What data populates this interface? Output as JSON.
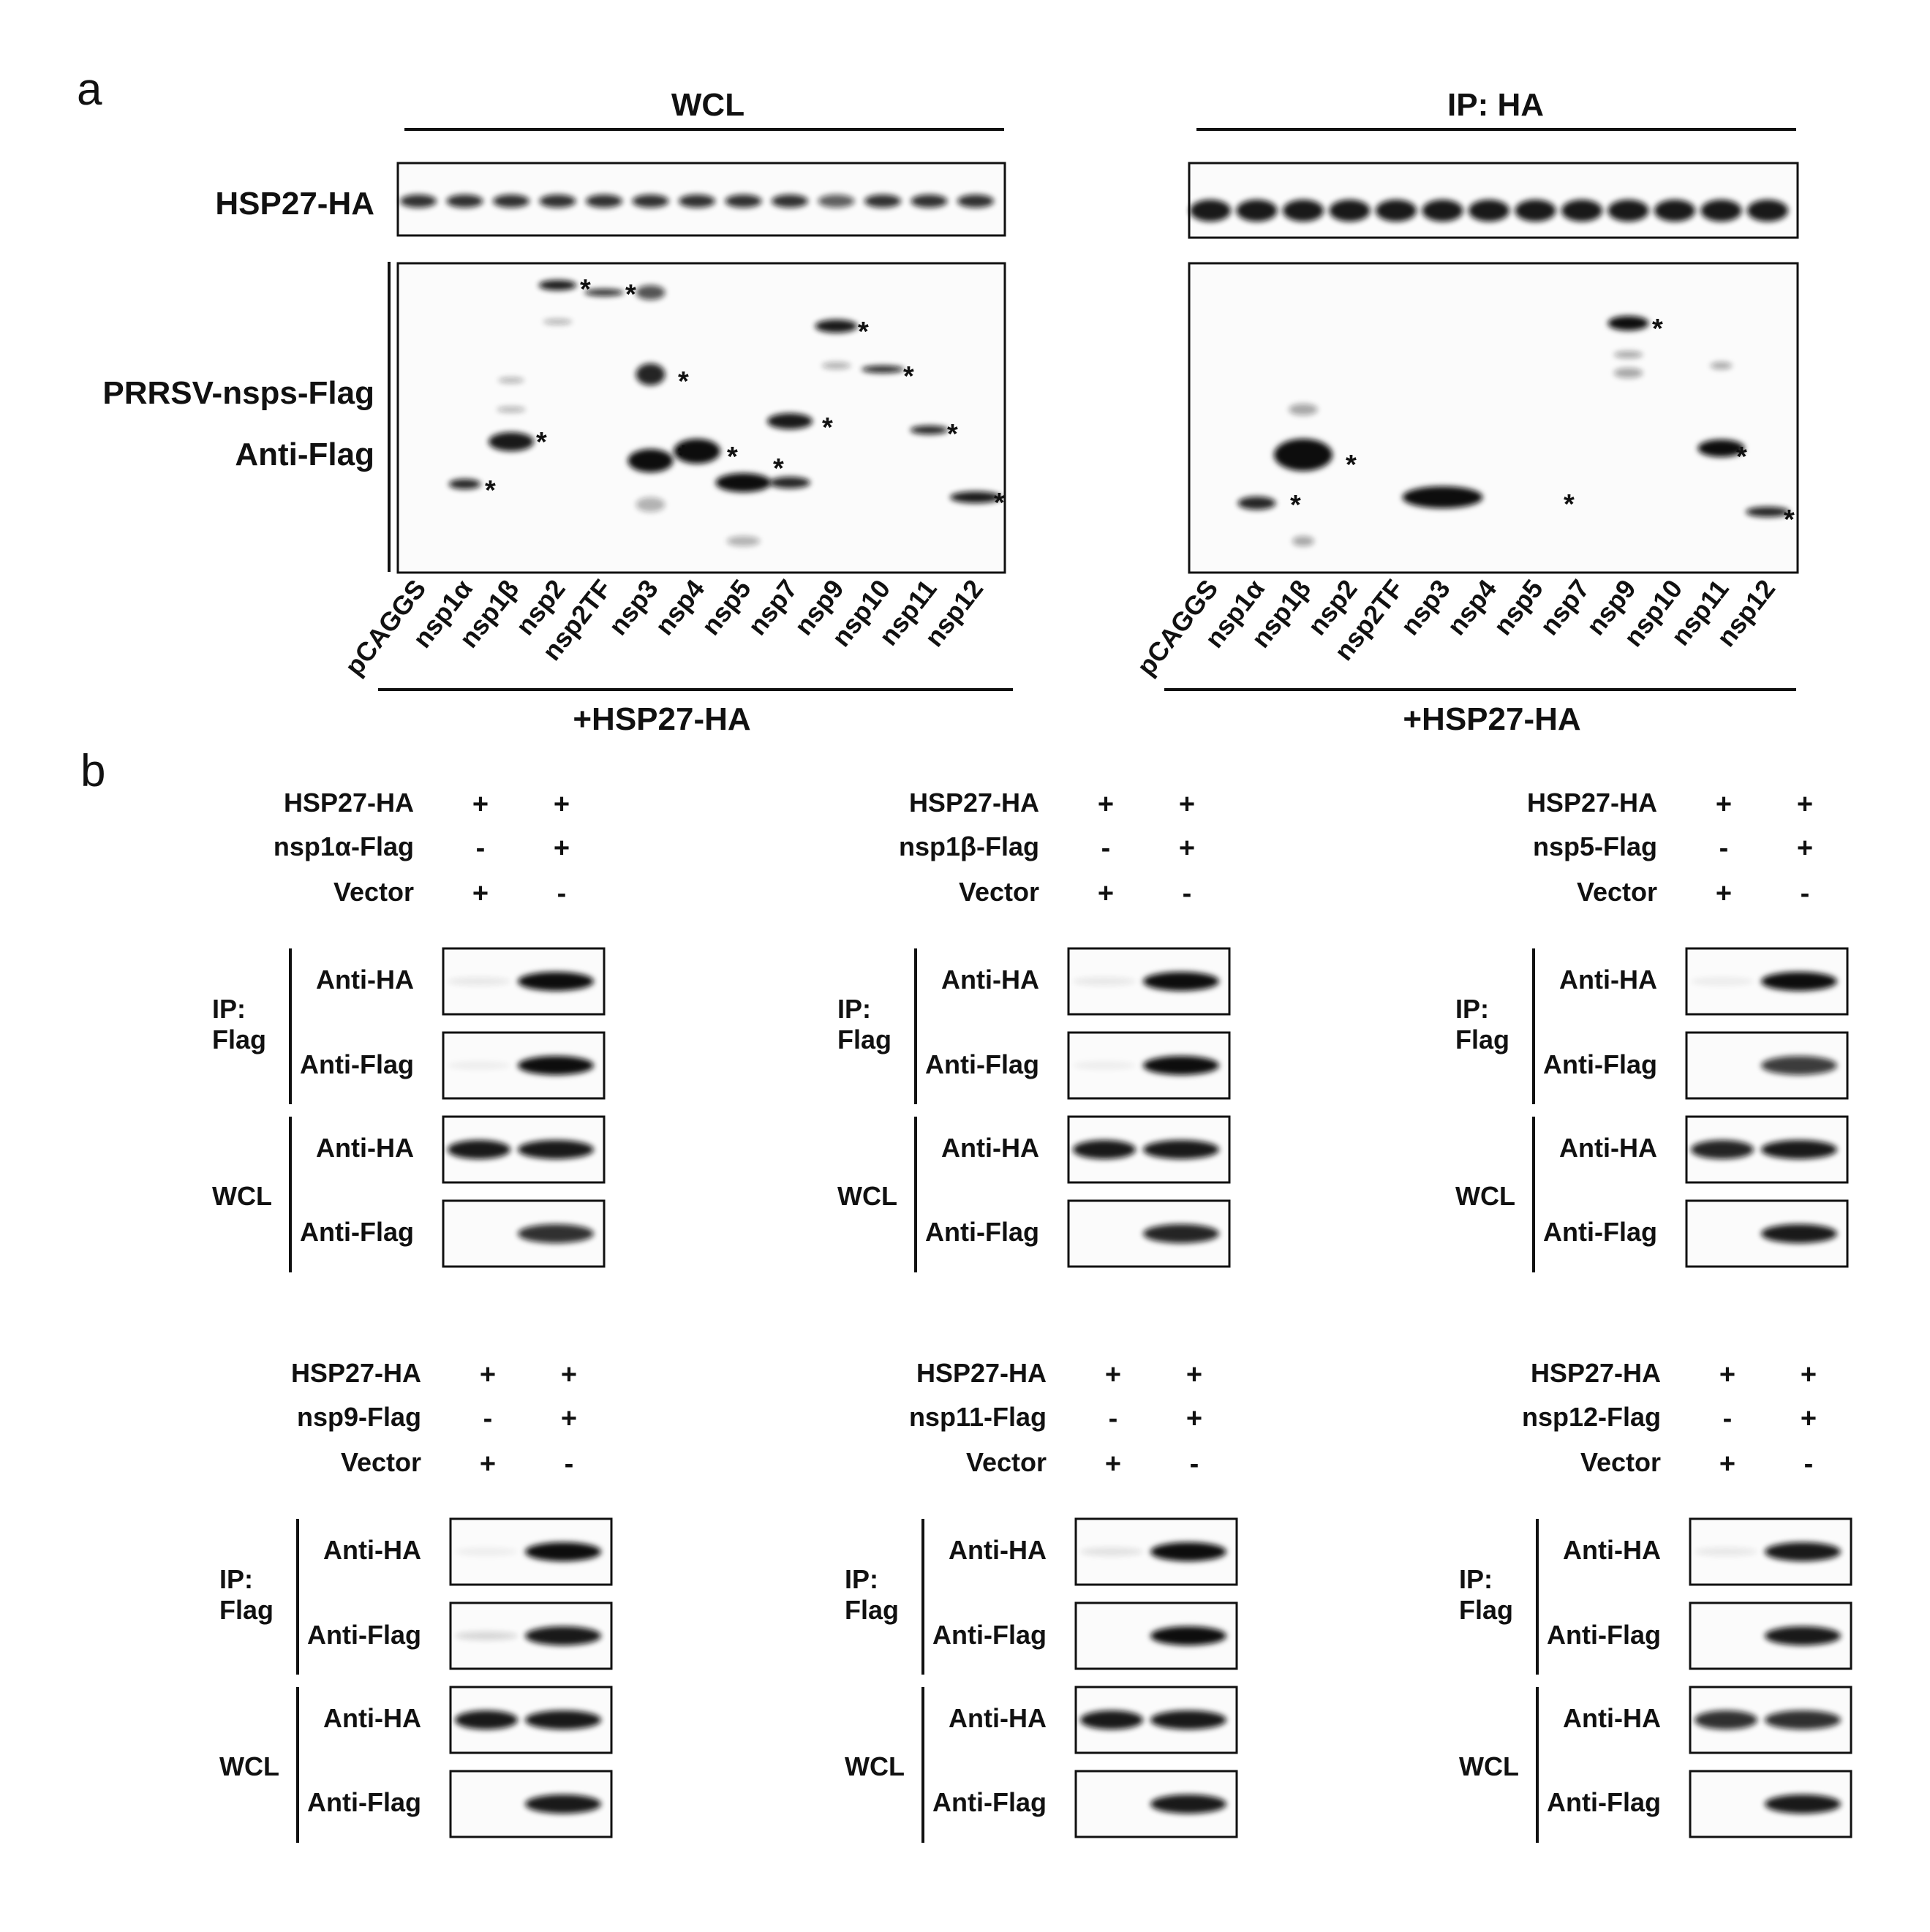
{
  "panel_a": {
    "letter": "a",
    "left_blot": {
      "title": "WCL",
      "row1_label": "HSP27-HA",
      "row2_label_1": "PRRSV-nsps-Flag",
      "row2_label_2": "Anti-Flag",
      "bottom_label": "+HSP27-HA"
    },
    "right_blot": {
      "title": "IP: HA",
      "bottom_label": "+HSP27-HA"
    },
    "lanes": [
      "pCAGGS",
      "nsp1α",
      "nsp1β",
      "nsp2",
      "nsp2TF",
      "nsp3",
      "nsp4",
      "nsp5",
      "nsp7",
      "nsp9",
      "nsp10",
      "nsp11",
      "nsp12"
    ],
    "star_marker": "*"
  },
  "panel_b": {
    "letter": "b",
    "blots": [
      {
        "construct": "nsp1α-Flag",
        "row_hsp": "HSP27-HA",
        "row_vector": "Vector",
        "hsp_signs": [
          "+",
          "+"
        ],
        "construct_signs": [
          "-",
          "+"
        ],
        "vector_signs": [
          "+",
          "-"
        ],
        "ip_label_1": "IP:",
        "ip_label_2": "Flag",
        "wcl_label": "WCL",
        "rows": [
          "Anti-HA",
          "Anti-Flag",
          "Anti-HA",
          "Anti-Flag"
        ]
      },
      {
        "construct": "nsp1β-Flag",
        "row_hsp": "HSP27-HA",
        "row_vector": "Vector",
        "hsp_signs": [
          "+",
          "+"
        ],
        "construct_signs": [
          "-",
          "+"
        ],
        "vector_signs": [
          "+",
          "-"
        ],
        "ip_label_1": "IP:",
        "ip_label_2": "Flag",
        "wcl_label": "WCL",
        "rows": [
          "Anti-HA",
          "Anti-Flag",
          "Anti-HA",
          "Anti-Flag"
        ]
      },
      {
        "construct": "nsp5-Flag",
        "row_hsp": "HSP27-HA",
        "row_vector": "Vector",
        "hsp_signs": [
          "+",
          "+"
        ],
        "construct_signs": [
          "-",
          "+"
        ],
        "vector_signs": [
          "+",
          "-"
        ],
        "ip_label_1": "IP:",
        "ip_label_2": "Flag",
        "wcl_label": "WCL",
        "rows": [
          "Anti-HA",
          "Anti-Flag",
          "Anti-HA",
          "Anti-Flag"
        ]
      },
      {
        "construct": "nsp9-Flag",
        "row_hsp": "HSP27-HA",
        "row_vector": "Vector",
        "hsp_signs": [
          "+",
          "+"
        ],
        "construct_signs": [
          "-",
          "+"
        ],
        "vector_signs": [
          "+",
          "-"
        ],
        "ip_label_1": "IP:",
        "ip_label_2": "Flag",
        "wcl_label": "WCL",
        "rows": [
          "Anti-HA",
          "Anti-Flag",
          "Anti-HA",
          "Anti-Flag"
        ]
      },
      {
        "construct": "nsp11-Flag",
        "row_hsp": "HSP27-HA",
        "row_vector": "Vector",
        "hsp_signs": [
          "+",
          "+"
        ],
        "construct_signs": [
          "-",
          "+"
        ],
        "vector_signs": [
          "+",
          "-"
        ],
        "ip_label_1": "IP:",
        "ip_label_2": "Flag",
        "wcl_label": "WCL",
        "rows": [
          "Anti-HA",
          "Anti-Flag",
          "Anti-HA",
          "Anti-Flag"
        ]
      },
      {
        "construct": "nsp12-Flag",
        "row_hsp": "HSP27-HA",
        "row_vector": "Vector",
        "hsp_signs": [
          "+",
          "+"
        ],
        "construct_signs": [
          "-",
          "+"
        ],
        "vector_signs": [
          "+",
          "-"
        ],
        "ip_label_1": "IP:",
        "ip_label_2": "Flag",
        "wcl_label": "WCL",
        "rows": [
          "Anti-HA",
          "Anti-Flag",
          "Anti-HA",
          "Anti-Flag"
        ]
      }
    ]
  },
  "colors": {
    "band": "#0a0a0a",
    "ink": "#111111",
    "box_bg": "#fbfbfb"
  }
}
